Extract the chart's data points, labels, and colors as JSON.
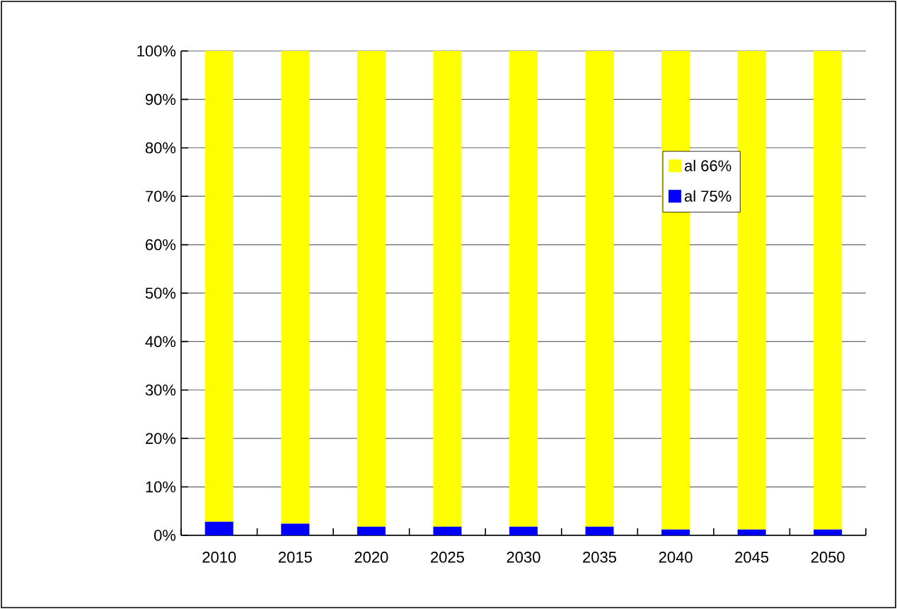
{
  "chart_data": {
    "type": "bar",
    "stacked": true,
    "categories": [
      "2010",
      "2015",
      "2020",
      "2025",
      "2030",
      "2035",
      "2040",
      "2045",
      "2050"
    ],
    "series": [
      {
        "name": "al 75%",
        "color": "#0000ff",
        "values": [
          2.8,
          2.4,
          1.8,
          1.8,
          1.8,
          1.8,
          1.2,
          1.2,
          1.2
        ]
      },
      {
        "name": "al 66%",
        "color": "#ffff00",
        "values": [
          97.2,
          97.6,
          98.2,
          98.2,
          98.2,
          98.2,
          98.8,
          98.8,
          98.8
        ]
      }
    ],
    "ylim": [
      0,
      100
    ],
    "yticks": [
      {
        "value": 0,
        "label": "0%"
      },
      {
        "value": 10,
        "label": "10%"
      },
      {
        "value": 20,
        "label": "20%"
      },
      {
        "value": 30,
        "label": "30%"
      },
      {
        "value": 40,
        "label": "40%"
      },
      {
        "value": 50,
        "label": "50%"
      },
      {
        "value": 60,
        "label": "60%"
      },
      {
        "value": 70,
        "label": "70%"
      },
      {
        "value": 80,
        "label": "80%"
      },
      {
        "value": 90,
        "label": "90%"
      },
      {
        "value": 100,
        "label": "100%"
      }
    ],
    "grid": "y",
    "legend": "right"
  }
}
